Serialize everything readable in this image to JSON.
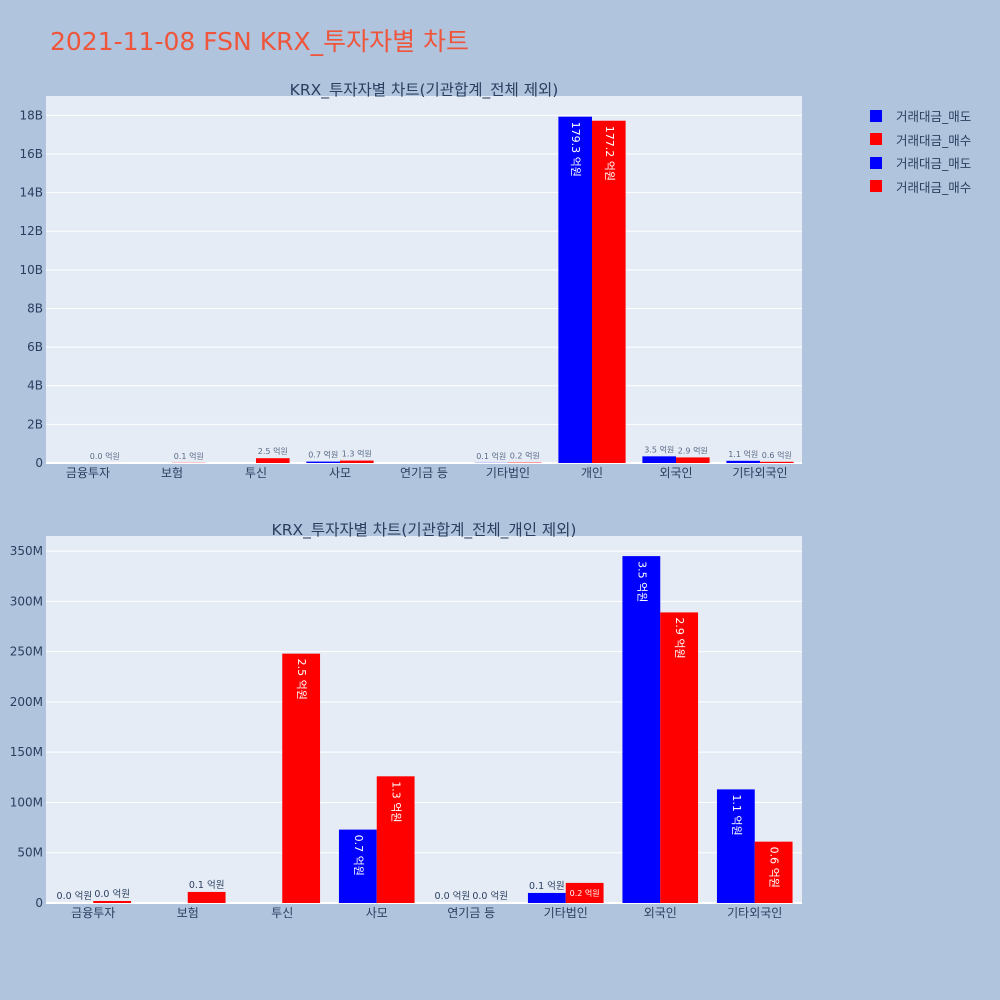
{
  "title": "2021-11-08 FSN KRX_투자자별 차트",
  "legend": [
    {
      "label": "거래대금_매도",
      "color": "#0000ff"
    },
    {
      "label": "거래대금_매수",
      "color": "#ff0000"
    },
    {
      "label": "거래대금_매도",
      "color": "#0000ff"
    },
    {
      "label": "거래대금_매수",
      "color": "#ff0000"
    }
  ],
  "colors": {
    "sell": "#0000ff",
    "buy": "#ff0000",
    "plot_bg": "#e5ecf6",
    "page_bg": "#b0c4de",
    "title": "#ef553b"
  },
  "chart_data": [
    {
      "type": "bar",
      "title": "KRX_투자자별 차트(기관합계_전체 제외)",
      "categories": [
        "금융투자",
        "보험",
        "투신",
        "사모",
        "연기금 등",
        "기타법인",
        "개인",
        "외국인",
        "기타외국인"
      ],
      "series": [
        {
          "name": "거래대금_매도",
          "color": "#0000ff",
          "values": [
            0,
            0,
            0,
            73000000,
            0,
            10000000,
            17930000000,
            345000000,
            113000000
          ],
          "labels": [
            "",
            "",
            "",
            "0.7 억원",
            "",
            "0.1 억원",
            "179.3 억원",
            "3.5 억원",
            "1.1 억원"
          ]
        },
        {
          "name": "거래대금_매수",
          "color": "#ff0000",
          "values": [
            2000000,
            11000000,
            248000000,
            126000000,
            0,
            20000000,
            17720000000,
            289000000,
            61000000
          ],
          "labels": [
            "0.0 억원",
            "0.1 억원",
            "2.5 억원",
            "1.3 억원",
            "",
            "0.2 억원",
            "177.2 억원",
            "2.9 억원",
            "0.6 억원"
          ]
        }
      ],
      "ylim": [
        0,
        19000000000
      ],
      "yticks": [
        0,
        2000000000,
        4000000000,
        6000000000,
        8000000000,
        10000000000,
        12000000000,
        14000000000,
        16000000000,
        18000000000
      ],
      "ytick_labels": [
        "0",
        "2B",
        "4B",
        "6B",
        "8B",
        "10B",
        "12B",
        "14B",
        "16B",
        "18B"
      ],
      "grid": true
    },
    {
      "type": "bar",
      "title": "KRX_투자자별 차트(기관합계_전체_개인 제외)",
      "categories": [
        "금융투자",
        "보험",
        "투신",
        "사모",
        "연기금 등",
        "기타법인",
        "외국인",
        "기타외국인"
      ],
      "series": [
        {
          "name": "거래대금_매도",
          "color": "#0000ff",
          "values": [
            0,
            0,
            0,
            73000000,
            0,
            10000000,
            345000000,
            113000000
          ],
          "labels": [
            "0.0 억원",
            "",
            "",
            "0.7 억원",
            "0.0 억원",
            "0.1 억원",
            "3.5 억원",
            "1.1 억원"
          ]
        },
        {
          "name": "거래대금_매수",
          "color": "#ff0000",
          "values": [
            2000000,
            11000000,
            248000000,
            126000000,
            0,
            20000000,
            289000000,
            61000000
          ],
          "labels": [
            "0.0 억원",
            "0.1 억원",
            "2.5 억원",
            "1.3 억원",
            "0.0 억원",
            "0.2 억원",
            "2.9 억원",
            "0.6 억원"
          ]
        }
      ],
      "ylim": [
        0,
        365000000
      ],
      "yticks": [
        0,
        50000000,
        100000000,
        150000000,
        200000000,
        250000000,
        300000000,
        350000000
      ],
      "ytick_labels": [
        "0",
        "50M",
        "100M",
        "150M",
        "200M",
        "250M",
        "300M",
        "350M"
      ],
      "grid": true
    }
  ]
}
